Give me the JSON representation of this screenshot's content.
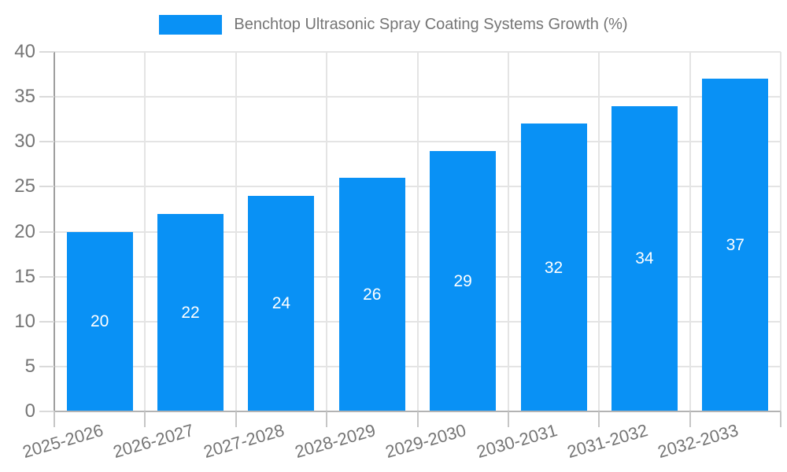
{
  "chart_data": {
    "type": "bar",
    "title": "Benchtop Ultrasonic Spray Coating Systems Growth (%)",
    "categories": [
      "2025-2026",
      "2026-2027",
      "2027-2028",
      "2028-2029",
      "2029-2030",
      "2030-2031",
      "2031-2032",
      "2032-2033"
    ],
    "values": [
      20,
      22,
      24,
      26,
      29,
      32,
      34,
      37
    ],
    "xlabel": "",
    "ylabel": "",
    "ylim": [
      0,
      40
    ],
    "yticks": [
      0,
      5,
      10,
      15,
      20,
      25,
      30,
      35,
      40
    ],
    "grid": true,
    "legend_position": "top-center",
    "bar_label_position": "inside-middle",
    "x_label_rotation_deg": -16,
    "colors": {
      "bar": "#0991f5",
      "bar_label": "#ffffff",
      "axis_text": "#757575",
      "gridline": "#e4e4e4",
      "y_tick": "#dadada",
      "x_tick": "#c6c6c6",
      "y_axis_line": "#9e9e9e",
      "x_axis_line": "#b3b3b3",
      "background": "#ffffff"
    }
  }
}
